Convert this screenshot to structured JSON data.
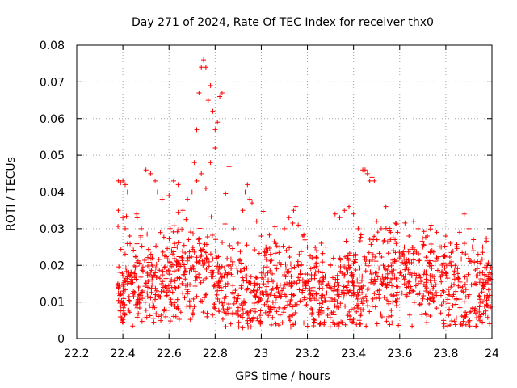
{
  "chart_data": {
    "type": "scatter",
    "title": "Day 271 of 2024, Rate Of TEC Index for receiver thx0",
    "xlabel": "GPS time / hours",
    "ylabel": "ROTI / TECUs",
    "xlim": [
      22.2,
      24
    ],
    "ylim": [
      0,
      0.08
    ],
    "x_ticks": [
      22.2,
      22.4,
      22.6,
      22.8,
      23,
      23.2,
      23.4,
      23.6,
      23.8,
      24
    ],
    "x_tick_labels": [
      "22.2",
      "22.4",
      "22.6",
      "22.8",
      "23",
      "23.2",
      "23.4",
      "23.6",
      "23.8",
      "24"
    ],
    "y_ticks": [
      0,
      0.01,
      0.02,
      0.03,
      0.04,
      0.05,
      0.06,
      0.07,
      0.08
    ],
    "y_tick_labels": [
      "0",
      "0.01",
      "0.02",
      "0.03",
      "0.04",
      "0.05",
      "0.06",
      "0.07",
      "0.08"
    ],
    "grid": true,
    "marker": "+",
    "color": "#ff0000",
    "series": [
      {
        "name": "ROTI",
        "x": [
          22.38,
          22.39,
          22.4,
          22.41,
          22.42,
          22.38,
          22.4,
          22.41,
          22.43,
          22.44,
          22.46,
          22.48,
          22.5,
          22.52,
          22.54,
          22.55,
          22.57,
          22.6,
          22.62,
          22.64,
          22.66,
          22.68,
          22.7,
          22.71,
          22.72,
          22.73,
          22.74,
          22.75,
          22.76,
          22.77,
          22.78,
          22.79,
          22.8,
          22.81,
          22.82,
          22.83,
          22.78,
          22.8,
          22.72,
          22.74,
          22.76,
          22.86,
          22.88,
          22.9,
          22.92,
          22.93,
          22.94,
          22.95,
          22.96,
          22.98,
          23.0,
          23.02,
          23.04,
          23.06,
          23.08,
          23.1,
          23.12,
          23.14,
          23.15,
          23.16,
          23.18,
          23.2,
          23.22,
          23.24,
          23.26,
          23.28,
          23.3,
          23.32,
          23.34,
          23.36,
          23.38,
          23.4,
          23.42,
          23.44,
          23.45,
          23.46,
          23.47,
          23.48,
          23.49,
          23.5,
          23.52,
          23.54,
          23.56,
          23.58,
          23.6,
          23.62,
          23.64,
          23.66,
          23.68,
          23.7,
          23.72,
          23.74,
          23.76,
          23.78,
          23.8,
          23.82,
          23.84,
          23.86,
          23.88,
          23.9,
          23.92,
          23.94,
          23.96,
          23.98,
          23.99,
          22.42,
          22.47,
          22.53,
          22.58,
          22.63,
          22.69,
          22.84,
          22.89,
          22.97,
          23.03,
          23.07,
          23.13,
          23.19,
          23.23,
          23.29,
          23.33,
          23.39,
          23.43,
          23.51,
          23.57,
          23.63,
          23.67,
          23.73,
          23.79,
          23.83,
          23.87,
          23.93,
          23.97
        ],
        "y": [
          0.043,
          0.0425,
          0.043,
          0.042,
          0.04,
          0.035,
          0.033,
          0.03,
          0.028,
          0.025,
          0.034,
          0.03,
          0.046,
          0.045,
          0.043,
          0.04,
          0.038,
          0.039,
          0.043,
          0.042,
          0.035,
          0.038,
          0.04,
          0.048,
          0.057,
          0.067,
          0.074,
          0.076,
          0.074,
          0.065,
          0.069,
          0.062,
          0.057,
          0.059,
          0.066,
          0.067,
          0.048,
          0.052,
          0.043,
          0.045,
          0.041,
          0.047,
          0.03,
          0.026,
          0.035,
          0.04,
          0.042,
          0.038,
          0.037,
          0.032,
          0.028,
          0.025,
          0.023,
          0.02,
          0.025,
          0.03,
          0.033,
          0.035,
          0.036,
          0.031,
          0.028,
          0.025,
          0.022,
          0.024,
          0.026,
          0.025,
          0.02,
          0.034,
          0.033,
          0.035,
          0.036,
          0.034,
          0.03,
          0.046,
          0.046,
          0.045,
          0.043,
          0.044,
          0.043,
          0.032,
          0.03,
          0.036,
          0.029,
          0.027,
          0.022,
          0.025,
          0.028,
          0.032,
          0.03,
          0.025,
          0.028,
          0.024,
          0.022,
          0.025,
          0.028,
          0.026,
          0.02,
          0.029,
          0.034,
          0.03,
          0.027,
          0.023,
          0.025,
          0.02,
          0.018,
          0.015,
          0.012,
          0.01,
          0.008,
          0.006,
          0.009,
          0.011,
          0.007,
          0.013,
          0.016,
          0.014,
          0.012,
          0.009,
          0.011,
          0.015,
          0.013,
          0.008,
          0.004,
          0.012,
          0.01,
          0.014,
          0.016,
          0.011,
          0.005,
          0.009,
          0.013,
          0.007,
          0.015
        ]
      }
    ]
  }
}
